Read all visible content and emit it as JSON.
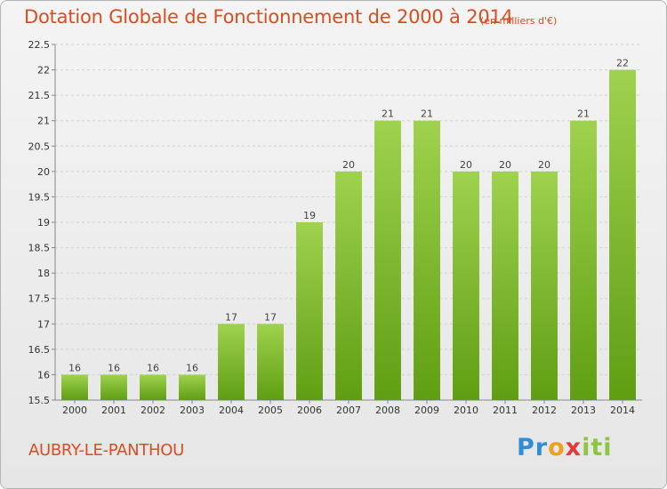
{
  "header": {
    "title": "Dotation Globale de Fonctionnement de 2000 à 2014",
    "subtitle": "(en milliers d'€)"
  },
  "footer": {
    "commune": "AUBRY-LE-PANTHOU",
    "logo": {
      "p1": "Pr",
      "p2": "o",
      "p3": "x",
      "p4": "iti"
    }
  },
  "colors": {
    "bar_top": "#9fd24e",
    "bar_bottom": "#5f9e12",
    "title": "#d94e20"
  },
  "chart_data": {
    "type": "bar",
    "title": "Dotation Globale de Fonctionnement de 2000 à 2014",
    "xlabel": "",
    "ylabel": "",
    "ylim": [
      15.5,
      22.5
    ],
    "yticks": [
      "15.5",
      "16",
      "16.5",
      "17",
      "17.5",
      "18",
      "18.5",
      "19",
      "19.5",
      "20",
      "20.5",
      "21",
      "21.5",
      "22",
      "22.5"
    ],
    "categories": [
      "2000",
      "2001",
      "2002",
      "2003",
      "2004",
      "2005",
      "2006",
      "2007",
      "2008",
      "2009",
      "2010",
      "2011",
      "2012",
      "2013",
      "2014"
    ],
    "values": [
      16,
      16,
      16,
      16,
      17,
      17,
      19,
      20,
      21,
      21,
      20,
      20,
      20,
      21,
      22
    ],
    "labels": [
      "16",
      "16",
      "16",
      "16",
      "17",
      "17",
      "19",
      "20",
      "21",
      "21",
      "20",
      "20",
      "20",
      "21",
      "22"
    ],
    "grid": true
  }
}
